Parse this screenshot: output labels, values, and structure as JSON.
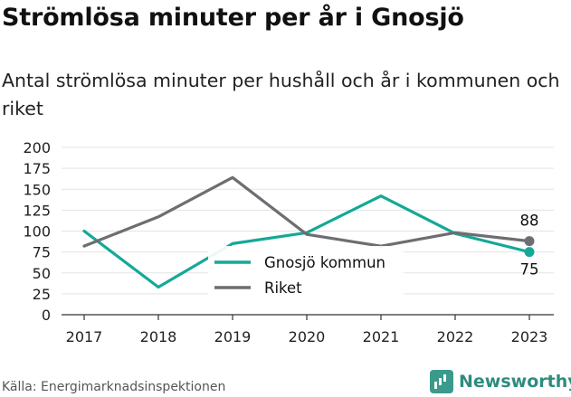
{
  "title": "Strömlösa minuter per år i Gnosjö",
  "subtitle": "Antal strömlösa minuter per hushåll och år i kommunen och riket",
  "source": "Källa: Energimarknadsinspektionen",
  "brand": "Newsworthy",
  "chart_data": {
    "type": "line",
    "x": [
      "2017",
      "2018",
      "2019",
      "2020",
      "2021",
      "2022",
      "2023"
    ],
    "series": [
      {
        "name": "Gnosjö kommun",
        "color": "#14a898",
        "values": [
          100,
          33,
          85,
          98,
          142,
          97,
          75
        ]
      },
      {
        "name": "Riket",
        "color": "#6e6d72",
        "values": [
          82,
          117,
          164,
          96,
          82,
          98,
          88
        ]
      }
    ],
    "yticks": [
      0,
      25,
      50,
      75,
      100,
      125,
      150,
      175,
      200
    ],
    "ylim": [
      0,
      200
    ],
    "grid": true,
    "legend": "center",
    "end_labels": [
      "75",
      "88"
    ]
  }
}
